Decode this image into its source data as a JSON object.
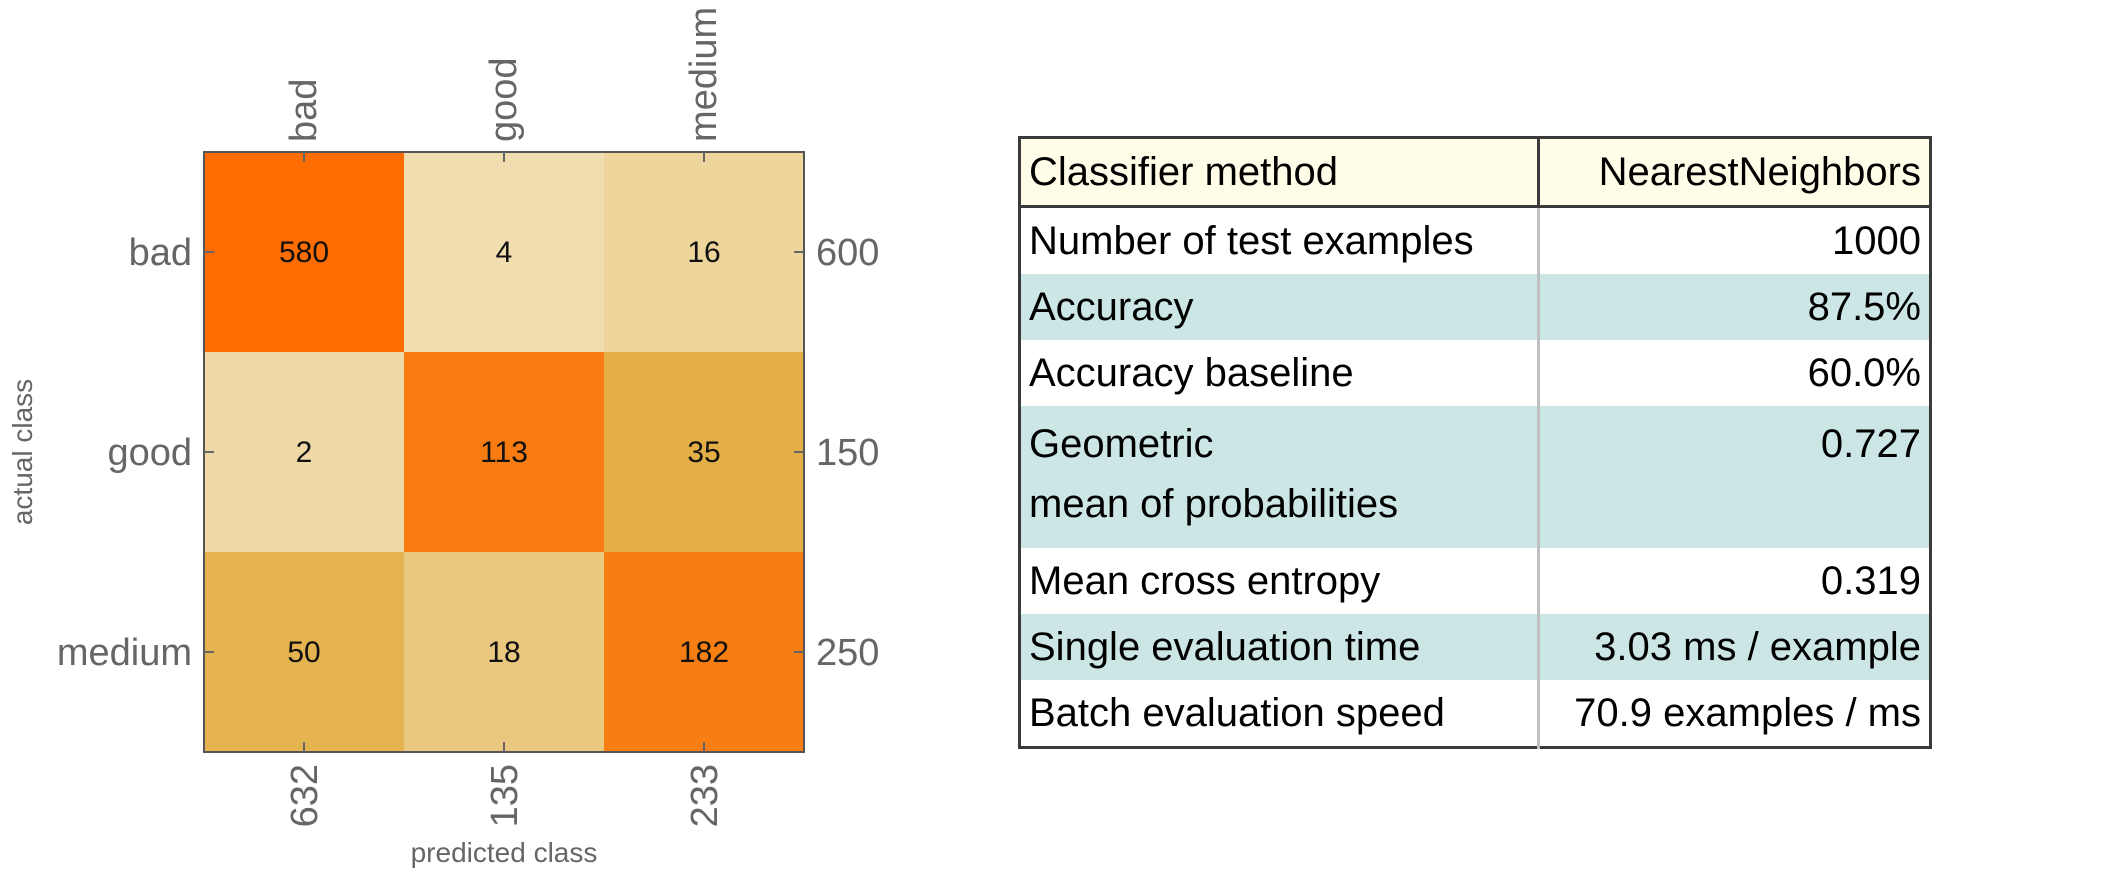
{
  "chart_data": {
    "type": "heatmap",
    "title": "",
    "xlabel": "predicted class",
    "ylabel": "actual class",
    "classes": [
      "bad",
      "good",
      "medium"
    ],
    "matrix": [
      [
        580,
        4,
        16
      ],
      [
        2,
        113,
        35
      ],
      [
        50,
        18,
        182
      ]
    ],
    "row_totals": [
      600,
      150,
      250
    ],
    "column_totals": [
      632,
      135,
      233
    ],
    "colors": {
      "high": "#ff6a00",
      "mid": "#e3ad41",
      "low": "#f2e8c6",
      "axis": "#666666",
      "frame": "#555555"
    }
  },
  "stats": {
    "header": {
      "label": "Classifier method",
      "value": "NearestNeighbors"
    },
    "rows": [
      {
        "label": "Number of test examples",
        "value": "1000"
      },
      {
        "label": "Accuracy",
        "value": "87.5%"
      },
      {
        "label": "Accuracy baseline",
        "value": "60.0%"
      },
      {
        "label": "Geometric",
        "label2": "mean of probabilities",
        "value": "0.727"
      },
      {
        "label": "Mean cross entropy",
        "value": "0.319"
      },
      {
        "label": "Single evaluation time",
        "value": "3.03 ms / example"
      },
      {
        "label": "Batch evaluation speed",
        "value": "70.9 examples / ms"
      }
    ]
  }
}
